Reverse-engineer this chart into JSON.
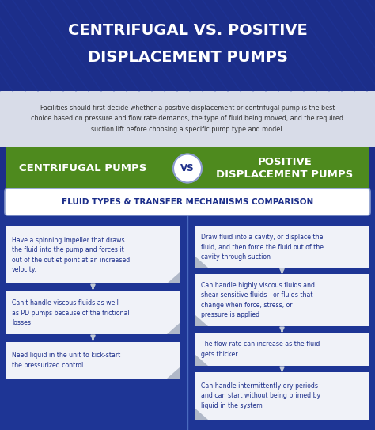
{
  "title_line1": "CENTRIFUGAL VS. POSITIVE",
  "title_line2": "DISPLACEMENT PUMPS",
  "title_bg": "#1c2e8a",
  "subtitle": "Facilities should first decide whether a positive displacement or centrifugal pump is the best\nchoice based on pressure and flow rate demands, the type of fluid being moved, and the required\nsuction lift before choosing a specific pump type and model.",
  "subtitle_bg": "#d8dce8",
  "left_label": "CENTRIFUGAL PUMPS",
  "right_label": "POSITIVE\nDISPLACEMENT PUMPS",
  "vs_text": "VS",
  "green_color": "#4e8a1e",
  "dark_blue": "#1c2e8a",
  "body_blue": "#1e3595",
  "white": "#ffffff",
  "silver": "#b0b8c8",
  "light_gray": "#c0c8d4",
  "comparison_label": "FLUID TYPES & TRANSFER MECHANISMS COMPARISON",
  "left_items": [
    "Have a spinning impeller that draws\nthe fluid into the pump and forces it\nout of the outlet point at an increased\nvelocity.",
    "Can't handle viscous fluids as well\nas PD pumps because of the frictional\nlosses",
    "Need liquid in the unit to kick-start\nthe pressurized control"
  ],
  "right_items": [
    "Draw fluid into a cavity, or displace the\nfluid, and then force the fluid out of the\ncavity through suction",
    "Can handle highly viscous fluids and\nshear sensitive fluids—or fluids that\nchange when force, stress, or\npressure is applied",
    "The flow rate can increase as the fluid\ngets thicker",
    "Can handle intermittently dry periods\nand can start without being primed by\nliquid in the system"
  ],
  "text_blue": "#1c2e8a",
  "divider_color": "#4a6abf",
  "stripe_color": "#2038a0"
}
